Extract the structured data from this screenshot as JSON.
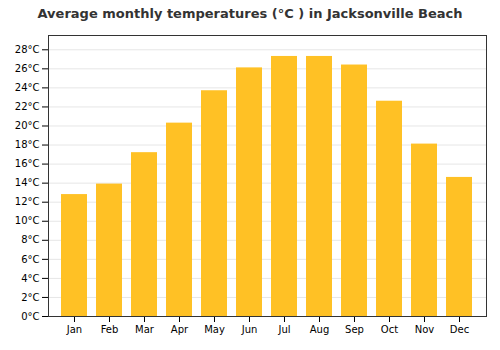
{
  "chart_data": {
    "type": "bar",
    "title": "Average monthly temperatures (°C ) in Jacksonville Beach",
    "categories": [
      "Jan",
      "Feb",
      "Mar",
      "Apr",
      "May",
      "Jun",
      "Jul",
      "Aug",
      "Sep",
      "Oct",
      "Nov",
      "Dec"
    ],
    "values": [
      12.8,
      13.9,
      17.2,
      20.3,
      23.7,
      26.1,
      27.3,
      27.3,
      26.4,
      22.6,
      18.1,
      14.6
    ],
    "color": "#FFC125",
    "ylim": [
      0,
      29.5
    ],
    "yticks": [
      {
        "value": 0,
        "label": "0°C"
      },
      {
        "value": 2,
        "label": "2°C"
      },
      {
        "value": 4,
        "label": "4°C"
      },
      {
        "value": 6,
        "label": "6°C"
      },
      {
        "value": 8,
        "label": "8°C"
      },
      {
        "value": 10,
        "label": "10°C"
      },
      {
        "value": 12,
        "label": "12°C"
      },
      {
        "value": 14,
        "label": "14°C"
      },
      {
        "value": 16,
        "label": "16°C"
      },
      {
        "value": 18,
        "label": "18°C"
      },
      {
        "value": 20,
        "label": "20°C"
      },
      {
        "value": 22,
        "label": "22°C"
      },
      {
        "value": 24,
        "label": "24°C"
      },
      {
        "value": 26,
        "label": "26°C"
      },
      {
        "value": 28,
        "label": "28°C"
      }
    ],
    "grid": true
  }
}
